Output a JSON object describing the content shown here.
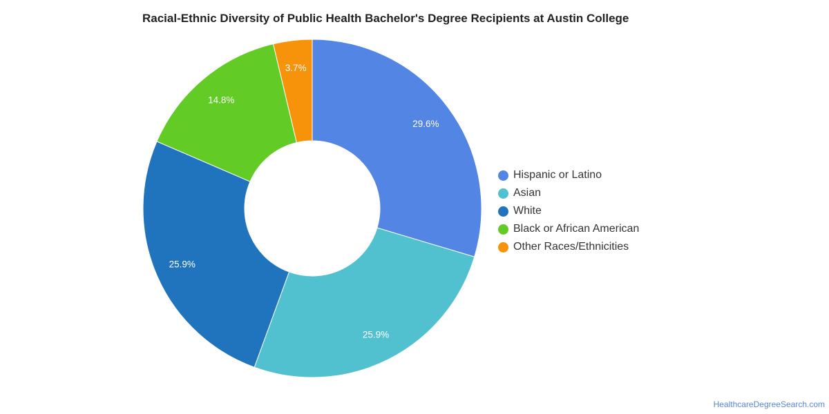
{
  "chart_data": {
    "type": "pie",
    "title": "Racial-Ethnic Diversity of Public Health Bachelor's Degree Recipients at Austin College",
    "donut": true,
    "legend_position": "right",
    "slices": [
      {
        "name": "Hispanic or Latino",
        "value": 29.6,
        "label": "29.6%",
        "color": "#5386e4"
      },
      {
        "name": "Asian",
        "value": 25.9,
        "label": "25.9%",
        "color": "#51c0cf"
      },
      {
        "name": "White",
        "value": 25.9,
        "label": "25.9%",
        "color": "#1f74bd"
      },
      {
        "name": "Black or African American",
        "value": 14.8,
        "label": "14.8%",
        "color": "#62cb25"
      },
      {
        "name": "Other Races/Ethnicities",
        "value": 3.7,
        "label": "3.7%",
        "color": "#f7930b"
      }
    ]
  },
  "credit": "HealthcareDegreeSearch.com"
}
